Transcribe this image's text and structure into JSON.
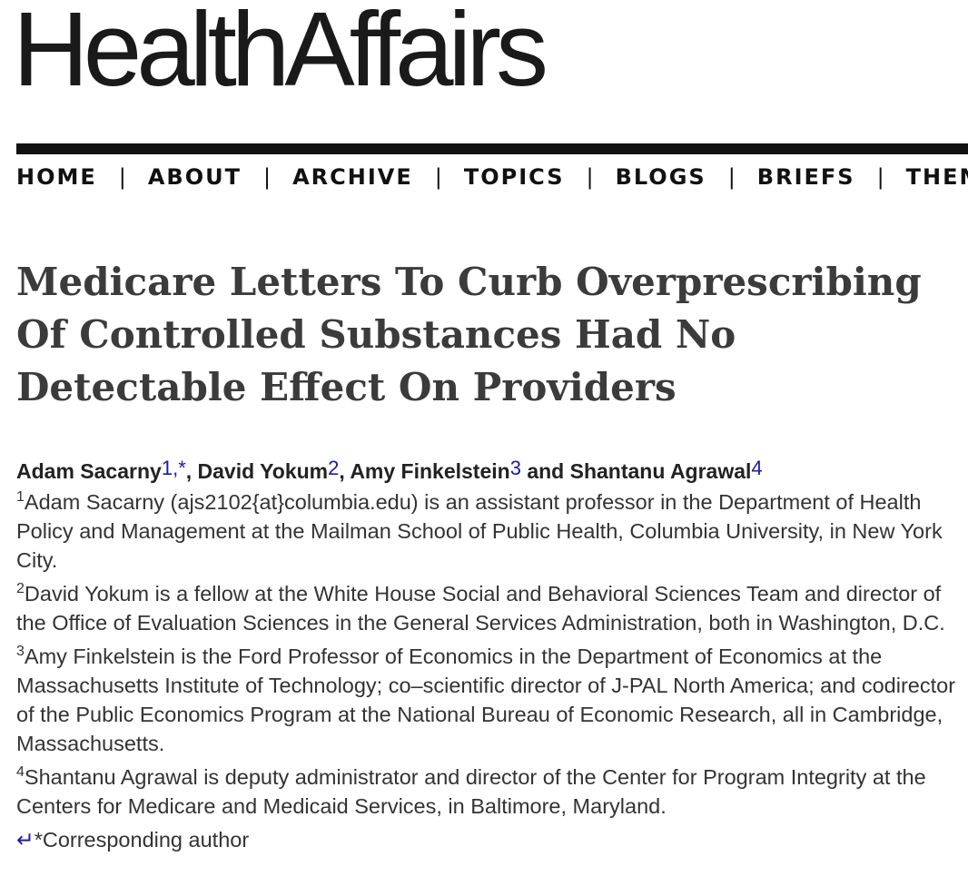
{
  "logo": {
    "text": "HealthAffairs"
  },
  "nav": {
    "items": [
      {
        "label": "HOME"
      },
      {
        "label": "ABOUT"
      },
      {
        "label": "ARCHIVE"
      },
      {
        "label": "TOPICS"
      },
      {
        "label": "BLOGS"
      },
      {
        "label": "BRIEFS"
      },
      {
        "label": "THEMES"
      }
    ],
    "separator": "|"
  },
  "article": {
    "title": "Medicare Letters To Curb Overprescribing Of Controlled Substances Had No Detectable Effect On Providers",
    "authors": [
      {
        "name": "Adam Sacarny",
        "ref": "1",
        "corr_mark": "*"
      },
      {
        "name": "David Yokum",
        "ref": "2"
      },
      {
        "name": "Amy Finkelstein",
        "ref": "3"
      },
      {
        "name": "Shantanu Agrawal",
        "ref": "4"
      }
    ],
    "author_separators": {
      "ref_comma": ",",
      "comma": ", ",
      "and": " and "
    },
    "affiliations": [
      {
        "num": "1",
        "text": "Adam Sacarny (ajs2102{at}columbia.edu) is an assistant professor in the Department of Health Policy and Management at the Mailman School of Public Health, Columbia University, in New York City."
      },
      {
        "num": "2",
        "text": "David Yokum is a fellow at the White House Social and Behavioral Sciences Team and director of the Office of Evaluation Sciences in the General Services Administration, both in Washington, D.C."
      },
      {
        "num": "3",
        "text": "Amy Finkelstein is the Ford Professor of Economics in the Department of Economics at the Massachusetts Institute of Technology; co–scientific director of J-PAL North America; and codirector of the Public Economics Program at the National Bureau of Economic Research, all in Cambridge, Massachusetts."
      },
      {
        "num": "4",
        "text": "Shantanu Agrawal is deputy administrator and director of the Center for Program Integrity at the Centers for Medicare and Medicaid Services, in Baltimore, Maryland."
      }
    ],
    "corresponding": {
      "icon_glyph": "↵",
      "text": "*Corresponding author"
    }
  },
  "colors": {
    "link": "#1a1aa6",
    "title": "#3b3b3b",
    "rule": "#111111"
  }
}
